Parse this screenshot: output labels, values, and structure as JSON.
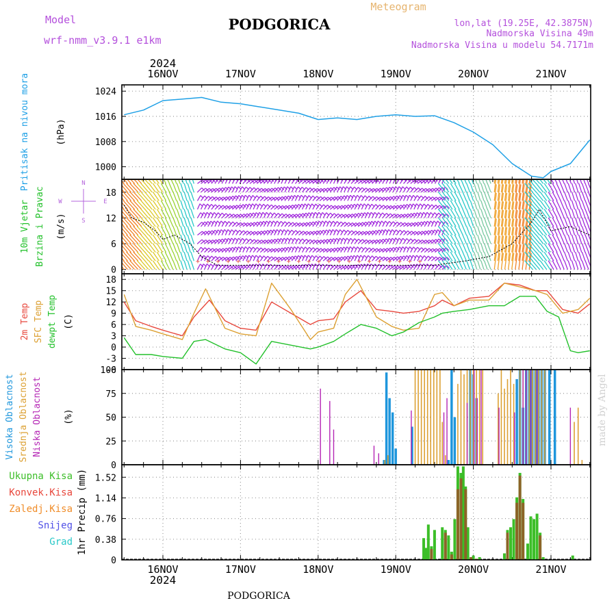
{
  "header": {
    "model_label": "Model",
    "model_name": "wrf-nmm_v3.9.1 e1km",
    "city": "PODGORICA",
    "meteogram": "Meteogram",
    "lonlat": "lon,lat (19.25E, 42.3875N)",
    "altitude": "Nadmorska Visina 49m",
    "model_altitude": "Nadmorska Visina u modelu 54.7171m"
  },
  "footer": {
    "city": "PODGORICA",
    "credit": "made by Angel"
  },
  "time_axis": {
    "year": "2024",
    "day_labels": [
      "16NOV",
      "17NOV",
      "18NOV",
      "19NOV",
      "20NOV",
      "21NOV"
    ]
  },
  "colors": {
    "pressure": "#1ea0e6",
    "temp_2m": "#e8473c",
    "sfc_temp": "#dca032",
    "dewpoint": "#22c02a",
    "cloud_high": "#1e96dc",
    "cloud_mid": "#dca032",
    "cloud_low": "#b424b4",
    "rain_total": "#3cbe28",
    "rain_conv": "#e8473c",
    "rain_frz": "#f08c28",
    "snow": "#5050e6",
    "graupel": "#28c8c8",
    "wind_label": "#22c02a",
    "compass": "#b464dc"
  },
  "panels": {
    "pressure": {
      "labels": [
        "Pritisak na nivou mora"
      ],
      "unit": "(hPa)",
      "ticks": [
        "1024",
        "1016",
        "1008",
        "1000"
      ]
    },
    "wind": {
      "labels": [
        "10m Vjetar",
        "Brzina i Pravac"
      ],
      "unit": "(m/s)",
      "ticks": [
        "18",
        "12",
        "6",
        "0"
      ],
      "compass": {
        "n": "N",
        "s": "S",
        "w": "W",
        "e": "E"
      }
    },
    "temp": {
      "labels": [
        "2m Temp",
        "SFC Temp",
        "dewpt Temp"
      ],
      "unit": "(C)",
      "ticks": [
        "18",
        "15",
        "12",
        "9",
        "6",
        "3",
        "0",
        "-3",
        "-6"
      ]
    },
    "cloud": {
      "labels": [
        "Visoka Oblacnost",
        "Srednja Oblacnost",
        "Niska Oblacnost"
      ],
      "unit": "(%)",
      "ticks": [
        "100",
        "75",
        "50",
        "25",
        "0"
      ]
    },
    "precip": {
      "labels": [
        "Ukupna Kisa",
        "Konvek.Kisa",
        "Zaledj.Kisa",
        "Snijeg",
        "Grad"
      ],
      "unit": "1hr Precip (mm)",
      "ticks": [
        "1.52",
        "1.14",
        "0.76",
        "0.38",
        "0"
      ]
    }
  },
  "chart_data": [
    {
      "type": "line",
      "x_unit": "days since 2024-11-16 00:00",
      "ylabel": "(hPa)",
      "ylim": [
        996,
        1026
      ],
      "series": [
        {
          "name": "Pritisak na nivou mora",
          "x": [
            -0.5,
            -0.25,
            0,
            0.25,
            0.5,
            0.75,
            1,
            1.25,
            1.5,
            1.75,
            2,
            2.25,
            2.5,
            2.75,
            3,
            3.25,
            3.5,
            3.75,
            4,
            4.25,
            4.5,
            4.75,
            4.9,
            5,
            5.25,
            5.5
          ],
          "y": [
            1016.5,
            1018,
            1021,
            1021.5,
            1022,
            1020.5,
            1020,
            1019,
            1018,
            1017,
            1015,
            1015.5,
            1015,
            1016,
            1016.5,
            1016,
            1016.2,
            1014,
            1011,
            1007,
            1001,
            997,
            996.5,
            998.5,
            1001,
            1008.5
          ]
        }
      ]
    },
    {
      "type": "line",
      "x_unit": "days since 2024-11-16 00:00",
      "ylabel": "(m/s)",
      "ylim": [
        -1,
        21
      ],
      "series": [
        {
          "name": "",
          "x": [
            -0.5,
            -0.4,
            -0.25,
            -0.1,
            0,
            0.15,
            0.35,
            0.5,
            0.7,
            0.9,
            1.5,
            2,
            2.5,
            3,
            3.5,
            3.9,
            4.2,
            4.5,
            4.6,
            4.75,
            4.85,
            5,
            5.25,
            5.5
          ],
          "y": [
            15,
            12,
            11,
            9,
            7,
            8,
            6,
            3,
            1,
            1,
            1,
            1,
            1,
            1,
            1,
            2,
            3,
            6,
            8,
            11,
            14,
            9,
            10,
            8
          ]
        }
      ]
    },
    {
      "type": "line",
      "x_unit": "days since 2024-11-16 00:00",
      "ylabel": "(C)",
      "ylim": [
        -6,
        19.5
      ],
      "series": [
        {
          "name": "2m Temp",
          "x": [
            -0.5,
            -0.35,
            -0.15,
            0,
            0.25,
            0.4,
            0.6,
            0.8,
            1.0,
            1.2,
            1.4,
            1.65,
            1.9,
            2.0,
            2.2,
            2.35,
            2.55,
            2.75,
            2.95,
            3.1,
            3.3,
            3.5,
            3.6,
            3.75,
            3.95,
            4.2,
            4.4,
            4.6,
            4.8,
            4.95,
            5.15,
            5.35,
            5.5
          ],
          "y": [
            12,
            7,
            5.5,
            4.5,
            3,
            8,
            12.5,
            7,
            5,
            4.5,
            12,
            9,
            6,
            7,
            7.5,
            12,
            15,
            10,
            9.5,
            9,
            9.5,
            11,
            12.5,
            11,
            13,
            13.5,
            17,
            16.5,
            15,
            15,
            10,
            9,
            11.5
          ]
        },
        {
          "name": "SFC Temp",
          "x": [
            -0.5,
            -0.35,
            -0.15,
            0,
            0.25,
            0.4,
            0.55,
            0.8,
            1.0,
            1.2,
            1.4,
            1.65,
            1.9,
            2.0,
            2.2,
            2.35,
            2.5,
            2.75,
            2.95,
            3.1,
            3.3,
            3.5,
            3.6,
            3.75,
            3.95,
            4.2,
            4.4,
            4.6,
            4.8,
            4.95,
            5.15,
            5.35,
            5.5
          ],
          "y": [
            14,
            5.5,
            4.5,
            3.5,
            2,
            9,
            15.5,
            5,
            3.5,
            3,
            17,
            10,
            2,
            4,
            5,
            14,
            18,
            8,
            5.5,
            4.5,
            5,
            14,
            14.5,
            11,
            12.5,
            12.5,
            17,
            16,
            15,
            14,
            9,
            10,
            13
          ]
        },
        {
          "name": "dewpt Temp",
          "x": [
            -0.5,
            -0.35,
            -0.15,
            0,
            0.25,
            0.4,
            0.55,
            0.8,
            1.0,
            1.2,
            1.4,
            1.65,
            1.9,
            2.0,
            2.2,
            2.35,
            2.55,
            2.75,
            2.95,
            3.1,
            3.3,
            3.5,
            3.6,
            3.75,
            3.95,
            4.2,
            4.4,
            4.6,
            4.8,
            4.95,
            5.1,
            5.25,
            5.35,
            5.5
          ],
          "y": [
            2.5,
            -2,
            -2,
            -2.5,
            -3,
            1.5,
            2,
            -0.5,
            -1.5,
            -4.5,
            1.5,
            0.5,
            -0.5,
            0,
            1.5,
            3.5,
            6,
            5,
            3,
            4,
            6.5,
            8,
            9,
            9.5,
            10,
            11,
            11,
            13.5,
            13.5,
            9.5,
            8,
            -1,
            -1.5,
            -1
          ]
        }
      ]
    },
    {
      "type": "bar",
      "x_unit": "days since 2024-11-16 00:00",
      "ylabel": "(%)",
      "ylim": [
        0,
        100
      ],
      "series": [
        {
          "name": "Visoka Oblacnost",
          "x": [
            2.85,
            2.88,
            2.92,
            2.96,
            3.0,
            3.21,
            3.68,
            3.72,
            3.76,
            3.96,
            4.0,
            4.04,
            4.56,
            4.6,
            4.64,
            4.68,
            4.72,
            4.76,
            4.8,
            4.84,
            4.88,
            4.92,
            4.98,
            5.05
          ],
          "y": [
            5,
            97,
            70,
            55,
            17,
            40,
            5,
            100,
            50,
            100,
            95,
            70,
            90,
            100,
            60,
            100,
            100,
            100,
            100,
            100,
            100,
            100,
            100,
            100
          ]
        },
        {
          "name": "Srednja Oblacnost",
          "x": [
            2.86,
            2.9,
            3.25,
            3.29,
            3.33,
            3.37,
            3.41,
            3.45,
            3.49,
            3.53,
            3.57,
            3.6,
            3.64,
            3.8,
            3.84,
            3.88,
            3.92,
            3.96,
            4.0,
            4.04,
            4.08,
            4.12,
            4.32,
            4.36,
            4.4,
            4.44,
            4.48,
            4.52,
            4.6,
            4.64,
            4.68,
            4.72,
            4.76,
            4.8,
            4.84,
            4.88,
            4.92,
            5.3,
            5.35,
            5.4
          ],
          "y": [
            5,
            10,
            100,
            100,
            100,
            100,
            100,
            100,
            100,
            100,
            100,
            45,
            10,
            85,
            100,
            95,
            100,
            100,
            100,
            100,
            100,
            100,
            75,
            100,
            80,
            90,
            100,
            85,
            100,
            100,
            100,
            100,
            100,
            100,
            100,
            100,
            100,
            45,
            60,
            5
          ]
        },
        {
          "name": "Niska Oblacnost",
          "x": [
            2.03,
            2.15,
            2.2,
            2.72,
            2.78,
            3.2,
            3.62,
            3.66,
            3.92,
            4.01,
            4.05,
            4.1,
            4.33,
            4.53,
            4.64,
            4.68,
            4.74,
            4.82,
            5.25
          ],
          "y": [
            80,
            67,
            37,
            20,
            12,
            57,
            55,
            70,
            65,
            100,
            70,
            100,
            60,
            55,
            100,
            100,
            100,
            100,
            60
          ]
        }
      ]
    },
    {
      "type": "bar",
      "x_unit": "days since 2024-11-16 00:00",
      "ylabel": "1hr Precip (mm)",
      "ylim": [
        0,
        1.75
      ],
      "series": [
        {
          "name": "Ukupna Kisa",
          "x": [
            3.36,
            3.39,
            3.42,
            3.46,
            3.5,
            3.6,
            3.64,
            3.68,
            3.72,
            3.76,
            3.8,
            3.84,
            3.87,
            3.9,
            3.93,
            3.97,
            4.0,
            4.04,
            4.08,
            4.4,
            4.44,
            4.48,
            4.52,
            4.56,
            4.6,
            4.64,
            4.7,
            4.74,
            4.78,
            4.82,
            4.86,
            4.9,
            5.28
          ],
          "y": [
            0.4,
            0.22,
            0.65,
            0.25,
            0.55,
            0.6,
            0.55,
            0.45,
            0.15,
            0.75,
            1.72,
            1.6,
            1.72,
            1.35,
            0.6,
            0.05,
            0.08,
            0.02,
            0.05,
            0.12,
            0.55,
            0.6,
            0.75,
            1.15,
            1.6,
            1.12,
            0.3,
            0.8,
            0.75,
            0.85,
            0.5,
            0.05,
            0.08
          ]
        },
        {
          "name": "Konvek.Kisa",
          "x": [
            3.46,
            3.64,
            3.72,
            3.8,
            3.84,
            3.9,
            3.97,
            4.04,
            4.44,
            4.56,
            4.6,
            4.64,
            4.86
          ],
          "y": [
            0.2,
            0.5,
            0.1,
            1.3,
            1.5,
            1.3,
            0.05,
            0.02,
            0.5,
            1.05,
            1.55,
            1.05,
            0.45
          ]
        },
        {
          "name": "Zaledj.Kisa",
          "x": [],
          "y": []
        },
        {
          "name": "Snijeg",
          "x": [],
          "y": []
        },
        {
          "name": "Grad",
          "x": [],
          "y": []
        }
      ]
    }
  ]
}
